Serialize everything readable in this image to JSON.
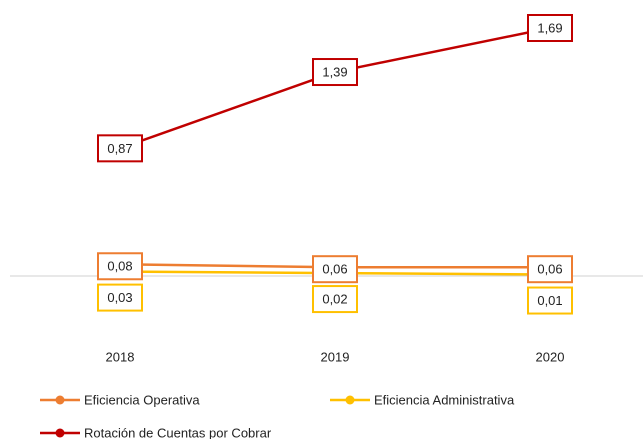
{
  "chart_data": {
    "type": "line",
    "categories": [
      "2018",
      "2019",
      "2020"
    ],
    "series": [
      {
        "name": "Eficiencia Operativa",
        "color": "#ED7D31",
        "values": [
          0.08,
          0.06,
          0.06
        ],
        "value_labels": [
          "0,08",
          "0,06",
          "0,06"
        ]
      },
      {
        "name": "Eficiencia Administrativa",
        "color": "#FFC000",
        "values": [
          0.03,
          0.02,
          0.01
        ],
        "value_labels": [
          "0,03",
          "0,02",
          "0,01"
        ]
      },
      {
        "name": "Rotación de Cuentas por Cobrar",
        "color": "#C00000",
        "values": [
          0.87,
          1.39,
          1.69
        ],
        "value_labels": [
          "0,87",
          "1,39",
          "1,69"
        ]
      }
    ]
  }
}
